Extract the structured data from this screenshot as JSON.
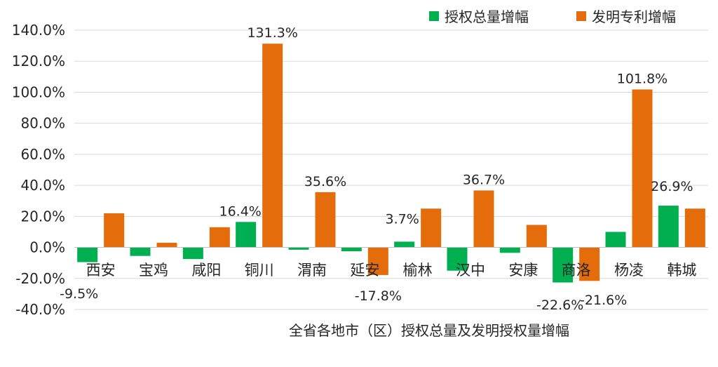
{
  "chart_data": {
    "type": "bar",
    "title": "全省各地市（区）授权总量及发明授权量增幅",
    "categories": [
      "西安",
      "宝鸡",
      "咸阳",
      "铜川",
      "渭南",
      "延安",
      "榆林",
      "汉中",
      "安康",
      "商洛",
      "杨凌",
      "韩城"
    ],
    "series": [
      {
        "name": "授权总量增幅",
        "color": "#00b050",
        "values": [
          -9.5,
          -5.5,
          -7.5,
          16.4,
          -1.5,
          -2.5,
          3.7,
          -15.0,
          -3.5,
          -22.6,
          10.0,
          26.9
        ]
      },
      {
        "name": "发明专利增幅",
        "color": "#e46c0a",
        "values": [
          22.0,
          3.0,
          13.0,
          131.3,
          35.6,
          -17.8,
          25.0,
          36.7,
          14.5,
          -21.6,
          101.8,
          25.0
        ]
      }
    ],
    "data_labels": [
      {
        "text": "-9.5%",
        "category": "西安",
        "series": 0
      },
      {
        "text": "16.4%",
        "category": "铜川",
        "series": 0
      },
      {
        "text": "131.3%",
        "category": "铜川",
        "series": 1
      },
      {
        "text": "35.6%",
        "category": "渭南",
        "series": 1
      },
      {
        "text": "3.7%",
        "category": "榆林",
        "series": 0
      },
      {
        "text": "-17.8%",
        "category": "延安",
        "series": 1
      },
      {
        "text": "36.7%",
        "category": "汉中",
        "series": 1
      },
      {
        "text": "-22.6%",
        "category": "商洛",
        "series": 0
      },
      {
        "text": "-21.6%",
        "category": "商洛",
        "series": 1
      },
      {
        "text": "101.8%",
        "category": "杨凌",
        "series": 1
      },
      {
        "text": "26.9%",
        "category": "韩城",
        "series": 0
      }
    ],
    "yticks": [
      "-40.0%",
      "-20.0%",
      "0.0%",
      "20.0%",
      "40.0%",
      "60.0%",
      "80.0%",
      "100.0%",
      "120.0%",
      "140.0%"
    ],
    "ylim": [
      -40,
      140
    ],
    "grid": true,
    "legend_position": "top-right"
  }
}
